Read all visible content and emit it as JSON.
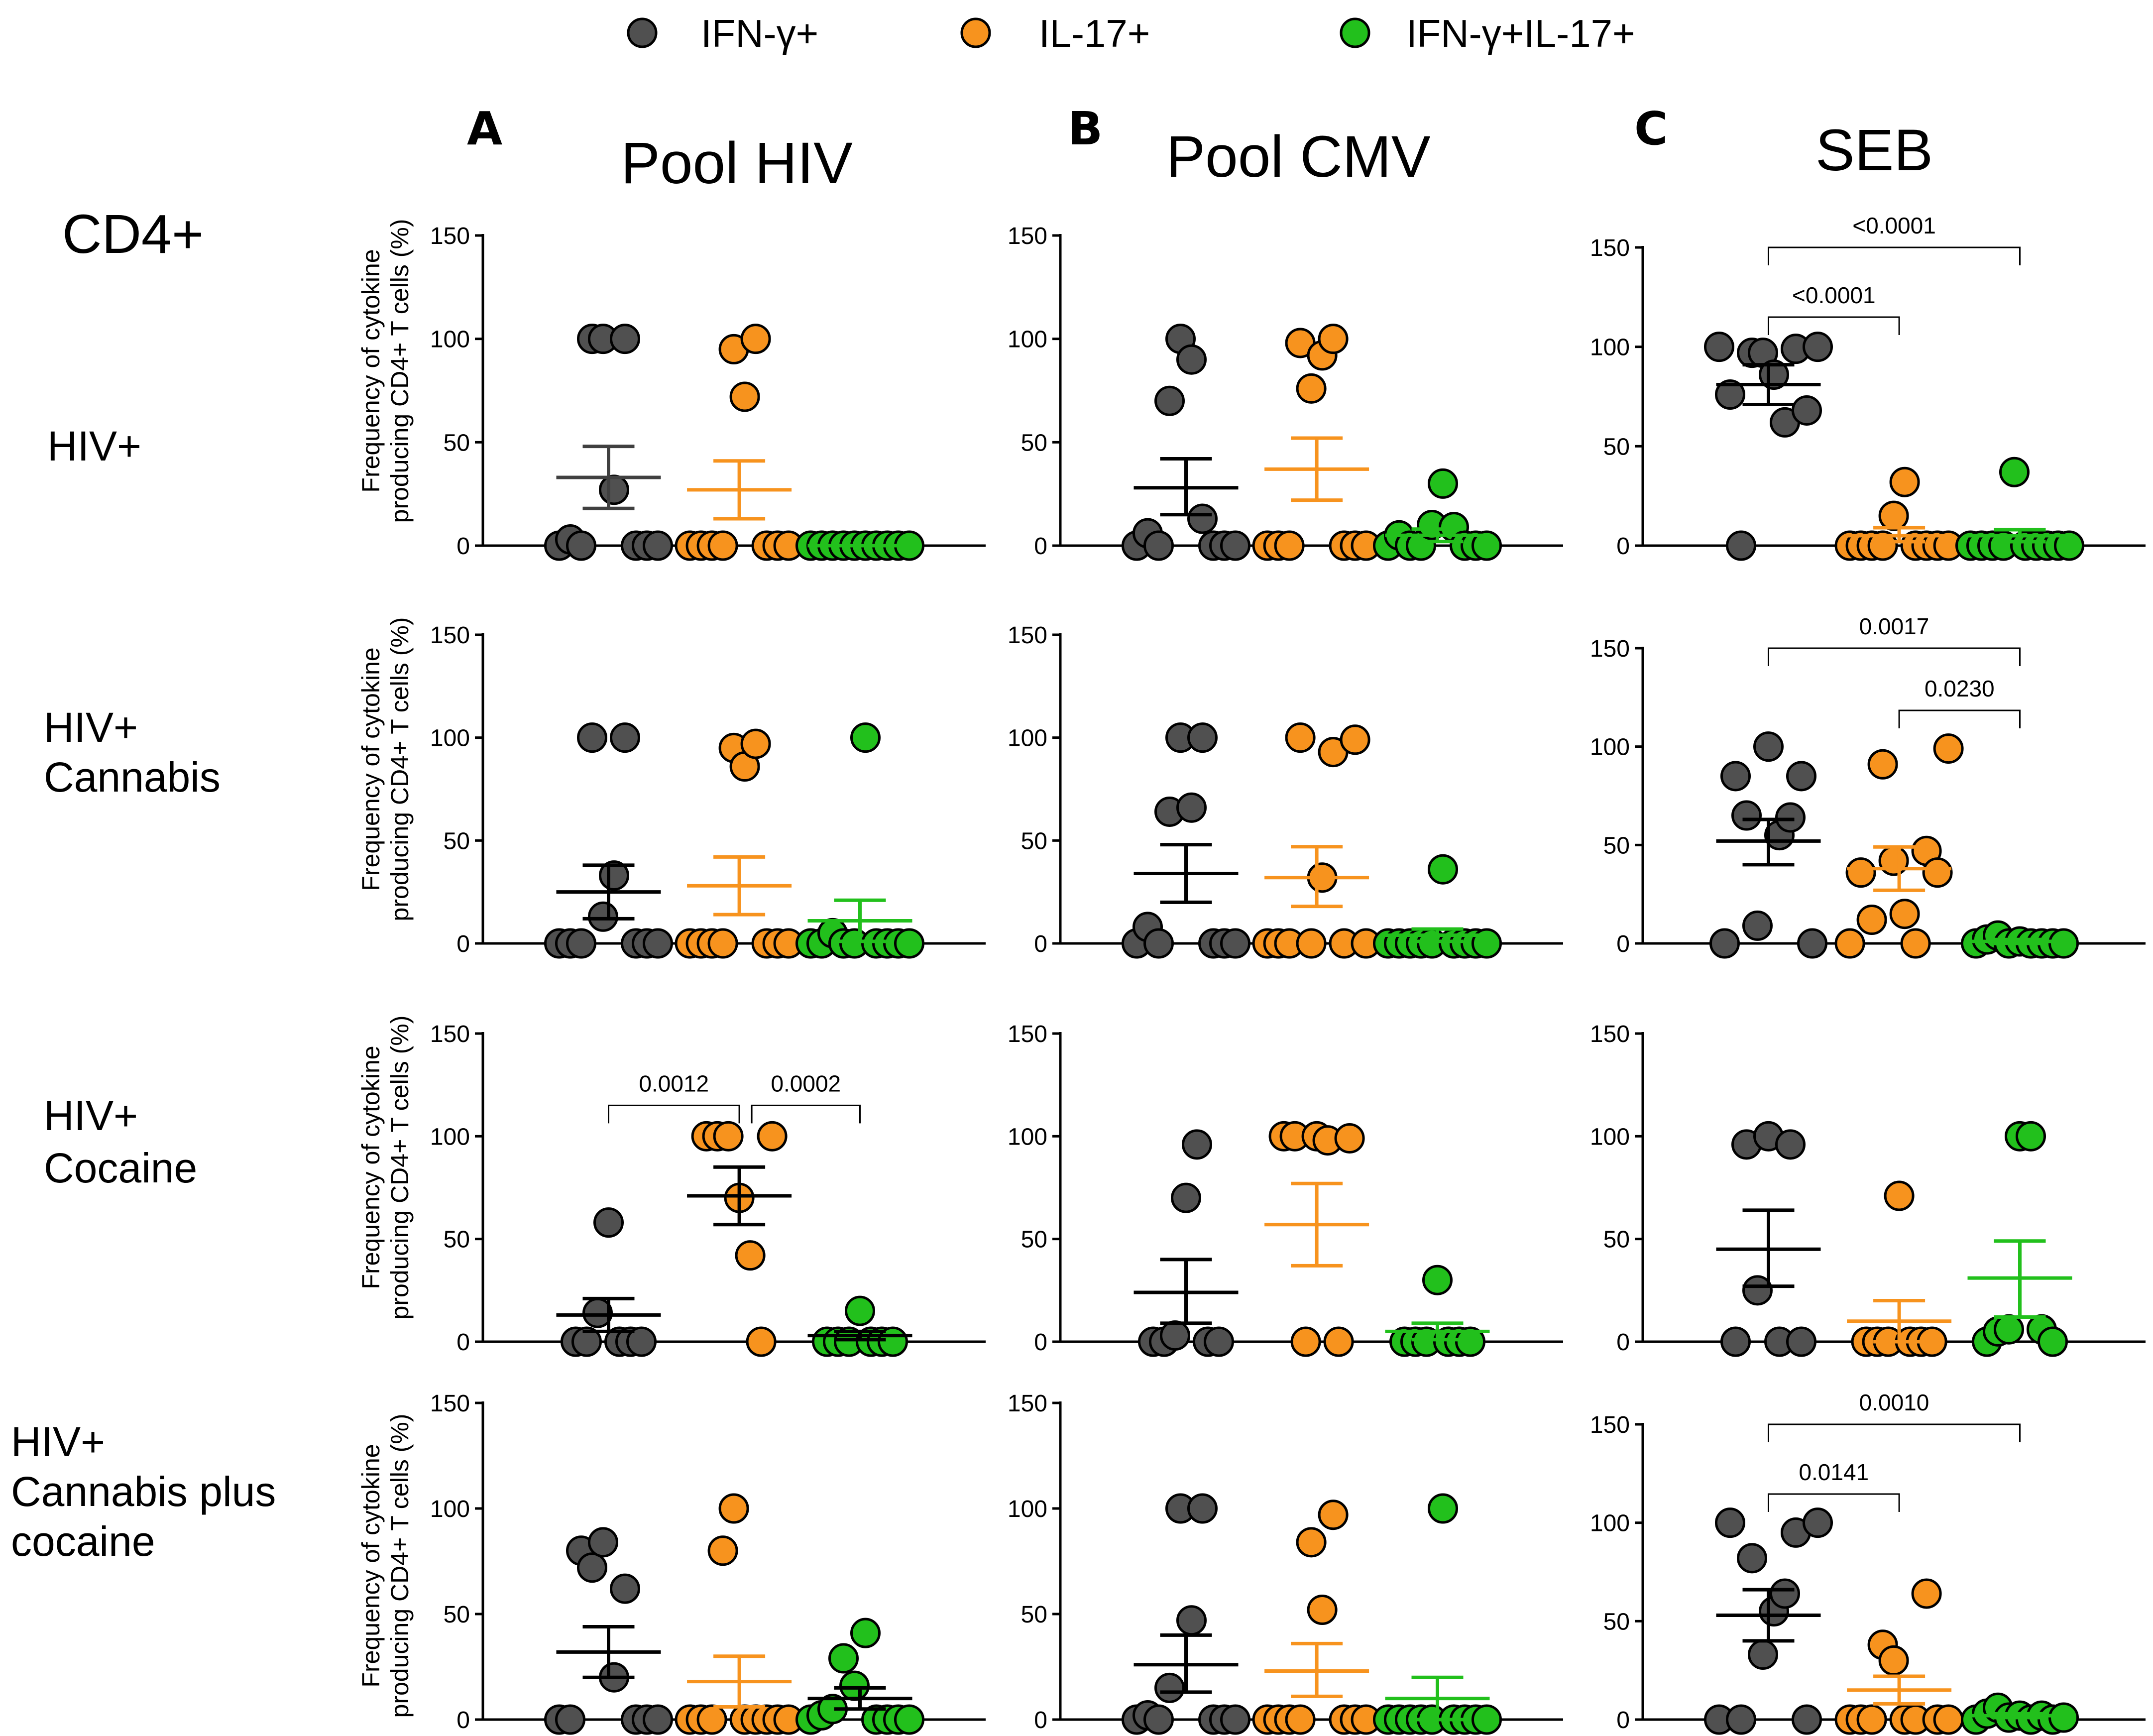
{
  "legend": [
    {
      "label": "IFN-γ+",
      "color": "#505050"
    },
    {
      "label": "IL-17+",
      "color": "#F7931E"
    },
    {
      "label": "IFN-γ+IL-17+",
      "color": "#22C01C"
    }
  ],
  "header": {
    "cell_type": "CD4+",
    "columns": [
      {
        "letter": "A",
        "title": "Pool  HIV"
      },
      {
        "letter": "B",
        "title": "Pool  CMV"
      },
      {
        "letter": "C",
        "title": "SEB"
      }
    ]
  },
  "rows": [
    {
      "lines": [
        "HIV+"
      ]
    },
    {
      "lines": [
        "HIV+",
        "Cannabis"
      ]
    },
    {
      "lines": [
        "HIV+",
        "Cocaine"
      ]
    },
    {
      "lines": [
        "HIV+",
        "Cannabis plus",
        "cocaine"
      ]
    }
  ],
  "ylabel_lines": [
    "Frequency of cytokine",
    "producing CD4+ T cells (%)"
  ],
  "colors": {
    "ifng": "#505050",
    "il17": "#F7931E",
    "double": "#22C01C",
    "ifng_bar": "#404040",
    "stroke": "#000000"
  },
  "chart_data": [
    {
      "row": 0,
      "col": 0,
      "type": "scatter",
      "ylim": [
        0,
        150
      ],
      "yticks": [
        0,
        50,
        100,
        150
      ],
      "groups": [
        {
          "name": "IFN-γ+",
          "values": [
            0,
            3,
            0,
            100,
            100,
            27,
            100,
            0,
            0,
            0
          ],
          "mean": 33,
          "sem_lo": 18,
          "sem_hi": 48,
          "bar_color_key": "ifng_bar"
        },
        {
          "name": "IL-17+",
          "values": [
            0,
            0,
            0,
            0,
            95,
            72,
            100,
            0,
            0,
            0
          ],
          "mean": 27,
          "sem_lo": 13,
          "sem_hi": 41,
          "bar_color_key": "il17"
        },
        {
          "name": "IFN-γ+IL-17+",
          "values": [
            0,
            0,
            0,
            0,
            0,
            0,
            0,
            0,
            0,
            0
          ],
          "mean": 0,
          "sem_lo": 0,
          "sem_hi": 0,
          "bar_color_key": "double"
        }
      ],
      "comparisons": []
    },
    {
      "row": 0,
      "col": 1,
      "type": "scatter",
      "ylim": [
        0,
        150
      ],
      "yticks": [
        0,
        50,
        100,
        150
      ],
      "groups": [
        {
          "name": "IFN-γ+",
          "values": [
            0,
            6,
            0,
            70,
            100,
            90,
            13,
            0,
            0,
            0
          ],
          "mean": 28,
          "sem_lo": 15,
          "sem_hi": 42,
          "bar_color_key": "stroke"
        },
        {
          "name": "IL-17+",
          "values": [
            0,
            0,
            0,
            98,
            76,
            92,
            100,
            0,
            0,
            0
          ],
          "mean": 37,
          "sem_lo": 22,
          "sem_hi": 52,
          "bar_color_key": "il17"
        },
        {
          "name": "IFN-γ+IL-17+",
          "values": [
            0,
            5,
            0,
            0,
            10,
            30,
            9,
            0,
            0,
            0
          ],
          "mean": 5,
          "sem_lo": 2,
          "sem_hi": 8,
          "bar_color_key": "double"
        }
      ],
      "comparisons": []
    },
    {
      "row": 0,
      "col": 2,
      "type": "scatter",
      "ylim": [
        0,
        150
      ],
      "yticks": [
        0,
        50,
        100,
        150
      ],
      "groups": [
        {
          "name": "IFN-γ+",
          "values": [
            100,
            76,
            0,
            97,
            97,
            86,
            62,
            99,
            68,
            100
          ],
          "mean": 81,
          "sem_lo": 71,
          "sem_hi": 91,
          "bar_color_key": "stroke"
        },
        {
          "name": "IL-17+",
          "values": [
            0,
            0,
            0,
            0,
            15,
            32,
            0,
            0,
            0,
            0
          ],
          "mean": 5,
          "sem_lo": 2,
          "sem_hi": 9,
          "bar_color_key": "il17"
        },
        {
          "name": "IFN-γ+IL-17+",
          "values": [
            0,
            0,
            0,
            0,
            37,
            0,
            0,
            0,
            0,
            0
          ],
          "mean": 5,
          "sem_lo": 2,
          "sem_hi": 8,
          "bar_color_key": "double"
        }
      ],
      "comparisons": [
        {
          "from": 0,
          "to": 1,
          "label": "<0.0001"
        },
        {
          "from": 0,
          "to": 2,
          "label": "<0.0001"
        }
      ]
    },
    {
      "row": 1,
      "col": 0,
      "type": "scatter",
      "ylim": [
        0,
        150
      ],
      "yticks": [
        0,
        50,
        100,
        150
      ],
      "groups": [
        {
          "name": "IFN-γ+",
          "values": [
            0,
            0,
            0,
            100,
            13,
            33,
            100,
            0,
            0,
            0
          ],
          "mean": 25,
          "sem_lo": 12,
          "sem_hi": 38,
          "bar_color_key": "stroke"
        },
        {
          "name": "IL-17+",
          "values": [
            0,
            0,
            0,
            0,
            95,
            86,
            97,
            0,
            0,
            0
          ],
          "mean": 28,
          "sem_lo": 14,
          "sem_hi": 42,
          "bar_color_key": "il17"
        },
        {
          "name": "IFN-γ+IL-17+",
          "values": [
            0,
            0,
            5,
            0,
            0,
            100,
            0,
            0,
            0,
            0
          ],
          "mean": 11,
          "sem_lo": 1,
          "sem_hi": 21,
          "bar_color_key": "double"
        }
      ],
      "comparisons": []
    },
    {
      "row": 1,
      "col": 1,
      "type": "scatter",
      "ylim": [
        0,
        150
      ],
      "yticks": [
        0,
        50,
        100,
        150
      ],
      "groups": [
        {
          "name": "IFN-γ+",
          "values": [
            0,
            8,
            0,
            64,
            100,
            66,
            100,
            0,
            0,
            0
          ],
          "mean": 34,
          "sem_lo": 20,
          "sem_hi": 48,
          "bar_color_key": "stroke"
        },
        {
          "name": "IL-17+",
          "values": [
            0,
            0,
            0,
            100,
            0,
            32,
            93,
            0,
            99,
            0
          ],
          "mean": 32,
          "sem_lo": 18,
          "sem_hi": 47,
          "bar_color_key": "il17"
        },
        {
          "name": "IFN-γ+IL-17+",
          "values": [
            0,
            0,
            0,
            0,
            0,
            36,
            0,
            0,
            0,
            0
          ],
          "mean": 4,
          "sem_lo": 1,
          "sem_hi": 7,
          "bar_color_key": "double"
        }
      ],
      "comparisons": []
    },
    {
      "row": 1,
      "col": 2,
      "type": "scatter",
      "ylim": [
        0,
        150
      ],
      "yticks": [
        0,
        50,
        100,
        150
      ],
      "groups": [
        {
          "name": "IFN-γ+",
          "values": [
            0,
            85,
            65,
            9,
            100,
            55,
            64,
            85,
            0
          ],
          "mean": 52,
          "sem_lo": 40,
          "sem_hi": 63,
          "bar_color_key": "stroke"
        },
        {
          "name": "IL-17+",
          "values": [
            0,
            36,
            12,
            91,
            42,
            15,
            0,
            47,
            36,
            99
          ],
          "mean": 38,
          "sem_lo": 27,
          "sem_hi": 49,
          "bar_color_key": "il17"
        },
        {
          "name": "IFN-γ+IL-17+",
          "values": [
            0,
            2,
            4,
            0,
            1,
            0,
            0,
            0,
            0
          ],
          "mean": 1,
          "sem_lo": 0,
          "sem_hi": 2,
          "bar_color_key": "double"
        }
      ],
      "comparisons": [
        {
          "from": 0,
          "to": 2,
          "label": "0.0017"
        },
        {
          "from": 1,
          "to": 2,
          "label": "0.0230"
        }
      ]
    },
    {
      "row": 2,
      "col": 0,
      "type": "scatter",
      "ylim": [
        0,
        150
      ],
      "yticks": [
        0,
        50,
        100,
        150
      ],
      "groups": [
        {
          "name": "IFN-γ+",
          "values": [
            0,
            0,
            14,
            58,
            0,
            0,
            0
          ],
          "mean": 13,
          "sem_lo": 5,
          "sem_hi": 21,
          "bar_color_key": "stroke"
        },
        {
          "name": "IL-17+",
          "values": [
            100,
            100,
            100,
            70,
            42,
            0,
            100
          ],
          "mean": 71,
          "sem_lo": 57,
          "sem_hi": 85,
          "bar_color_key": "stroke"
        },
        {
          "name": "IFN-γ+IL-17+",
          "values": [
            0,
            0,
            0,
            15,
            0,
            0,
            0
          ],
          "mean": 3,
          "sem_lo": 1,
          "sem_hi": 5,
          "bar_color_key": "stroke"
        }
      ],
      "comparisons": [
        {
          "from": 0,
          "to": 1,
          "label": "0.0012"
        },
        {
          "from": 1,
          "to": 2,
          "label": "0.0002"
        }
      ]
    },
    {
      "row": 2,
      "col": 1,
      "type": "scatter",
      "ylim": [
        0,
        150
      ],
      "yticks": [
        0,
        50,
        100,
        150
      ],
      "groups": [
        {
          "name": "IFN-γ+",
          "values": [
            0,
            0,
            3,
            70,
            96,
            0,
            0
          ],
          "mean": 24,
          "sem_lo": 9,
          "sem_hi": 40,
          "bar_color_key": "stroke"
        },
        {
          "name": "IL-17+",
          "values": [
            100,
            100,
            0,
            100,
            98,
            0,
            99
          ],
          "mean": 57,
          "sem_lo": 37,
          "sem_hi": 77,
          "bar_color_key": "il17"
        },
        {
          "name": "IFN-γ+IL-17+",
          "values": [
            0,
            0,
            0,
            30,
            0,
            0,
            0
          ],
          "mean": 5,
          "sem_lo": 1,
          "sem_hi": 9,
          "bar_color_key": "double"
        }
      ],
      "comparisons": []
    },
    {
      "row": 2,
      "col": 2,
      "type": "scatter",
      "ylim": [
        0,
        150
      ],
      "yticks": [
        0,
        50,
        100,
        150
      ],
      "groups": [
        {
          "name": "IFN-γ+",
          "values": [
            0,
            96,
            25,
            100,
            0,
            96,
            0
          ],
          "mean": 45,
          "sem_lo": 27,
          "sem_hi": 64,
          "bar_color_key": "stroke"
        },
        {
          "name": "IL-17+",
          "values": [
            0,
            0,
            0,
            71,
            0,
            0,
            0
          ],
          "mean": 10,
          "sem_lo": 0,
          "sem_hi": 20,
          "bar_color_key": "il17"
        },
        {
          "name": "IFN-γ+IL-17+",
          "values": [
            0,
            5,
            6,
            100,
            100,
            6,
            0
          ],
          "mean": 31,
          "sem_lo": 12,
          "sem_hi": 49,
          "bar_color_key": "double"
        }
      ],
      "comparisons": []
    },
    {
      "row": 3,
      "col": 0,
      "type": "scatter",
      "ylim": [
        0,
        150
      ],
      "yticks": [
        0,
        50,
        100,
        150
      ],
      "groups": [
        {
          "name": "IFN-γ+",
          "values": [
            0,
            0,
            80,
            72,
            84,
            20,
            62,
            0,
            0,
            0
          ],
          "mean": 32,
          "sem_lo": 20,
          "sem_hi": 44,
          "bar_color_key": "stroke"
        },
        {
          "name": "IL-17+",
          "values": [
            0,
            0,
            0,
            80,
            100,
            0,
            0,
            0,
            0,
            0
          ],
          "mean": 18,
          "sem_lo": 6,
          "sem_hi": 30,
          "bar_color_key": "il17"
        },
        {
          "name": "IFN-γ+IL-17+",
          "values": [
            0,
            2,
            5,
            29,
            16,
            41,
            0,
            0,
            0,
            0
          ],
          "mean": 10,
          "sem_lo": 5,
          "sem_hi": 15,
          "bar_color_key": "stroke"
        }
      ],
      "comparisons": []
    },
    {
      "row": 3,
      "col": 1,
      "type": "scatter",
      "ylim": [
        0,
        150
      ],
      "yticks": [
        0,
        50,
        100,
        150
      ],
      "groups": [
        {
          "name": "IFN-γ+",
          "values": [
            0,
            2,
            0,
            15,
            100,
            47,
            100,
            0,
            0,
            0
          ],
          "mean": 26,
          "sem_lo": 13,
          "sem_hi": 40,
          "bar_color_key": "stroke"
        },
        {
          "name": "IL-17+",
          "values": [
            0,
            0,
            0,
            0,
            84,
            52,
            97,
            0,
            0,
            0
          ],
          "mean": 23,
          "sem_lo": 11,
          "sem_hi": 36,
          "bar_color_key": "il17"
        },
        {
          "name": "IFN-γ+IL-17+",
          "values": [
            0,
            0,
            0,
            0,
            0,
            100,
            0,
            0,
            0,
            0
          ],
          "mean": 10,
          "sem_lo": 0,
          "sem_hi": 20,
          "bar_color_key": "double"
        }
      ],
      "comparisons": []
    },
    {
      "row": 3,
      "col": 2,
      "type": "scatter",
      "ylim": [
        0,
        150
      ],
      "yticks": [
        0,
        50,
        100,
        150
      ],
      "groups": [
        {
          "name": "IFN-γ+",
          "values": [
            0,
            100,
            0,
            82,
            33,
            55,
            64,
            95,
            0,
            100
          ],
          "mean": 53,
          "sem_lo": 40,
          "sem_hi": 66,
          "bar_color_key": "stroke"
        },
        {
          "name": "IL-17+",
          "values": [
            0,
            0,
            0,
            38,
            30,
            0,
            0,
            64,
            0,
            0
          ],
          "mean": 15,
          "sem_lo": 8,
          "sem_hi": 22,
          "bar_color_key": "il17"
        },
        {
          "name": "IFN-γ+IL-17+",
          "values": [
            0,
            3,
            6,
            1,
            2,
            0,
            2,
            0,
            1
          ],
          "mean": 2,
          "sem_lo": 1,
          "sem_hi": 3,
          "bar_color_key": "double"
        }
      ],
      "comparisons": [
        {
          "from": 0,
          "to": 1,
          "label": "0.0141"
        },
        {
          "from": 0,
          "to": 2,
          "label": "0.0010"
        }
      ]
    }
  ]
}
